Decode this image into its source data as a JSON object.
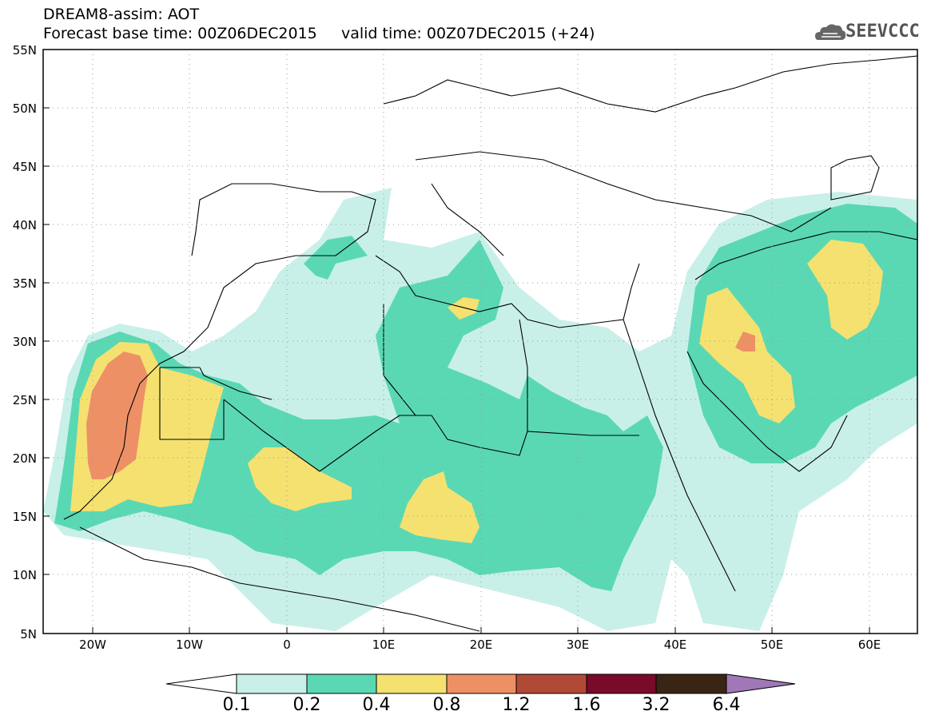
{
  "header": {
    "title_line1": "DREAM8-assim: AOT",
    "title_line2": "Forecast base time: 00Z06DEC2015     valid time: 00Z07DEC2015 (+24)"
  },
  "logo": {
    "text": "SEEVCCC",
    "icon": "cloud-icon"
  },
  "map": {
    "lat_labels": [
      "55N",
      "50N",
      "45N",
      "40N",
      "35N",
      "30N",
      "25N",
      "20N",
      "15N",
      "10N",
      "5N"
    ],
    "lon_labels": [
      "20W",
      "10W",
      "0",
      "10E",
      "20E",
      "30E",
      "40E",
      "50E",
      "60E"
    ],
    "grid": "dotted"
  },
  "colorbar": {
    "labels": [
      "0.1",
      "0.2",
      "0.4",
      "0.8",
      "1.2",
      "1.6",
      "3.2",
      "6.4"
    ],
    "colors": [
      "#ffffff",
      "#c8f0e8",
      "#5ad8b4",
      "#f5e170",
      "#ee9066",
      "#b04a36",
      "#7a0a2a",
      "#3a2515",
      "#a078b8"
    ]
  }
}
